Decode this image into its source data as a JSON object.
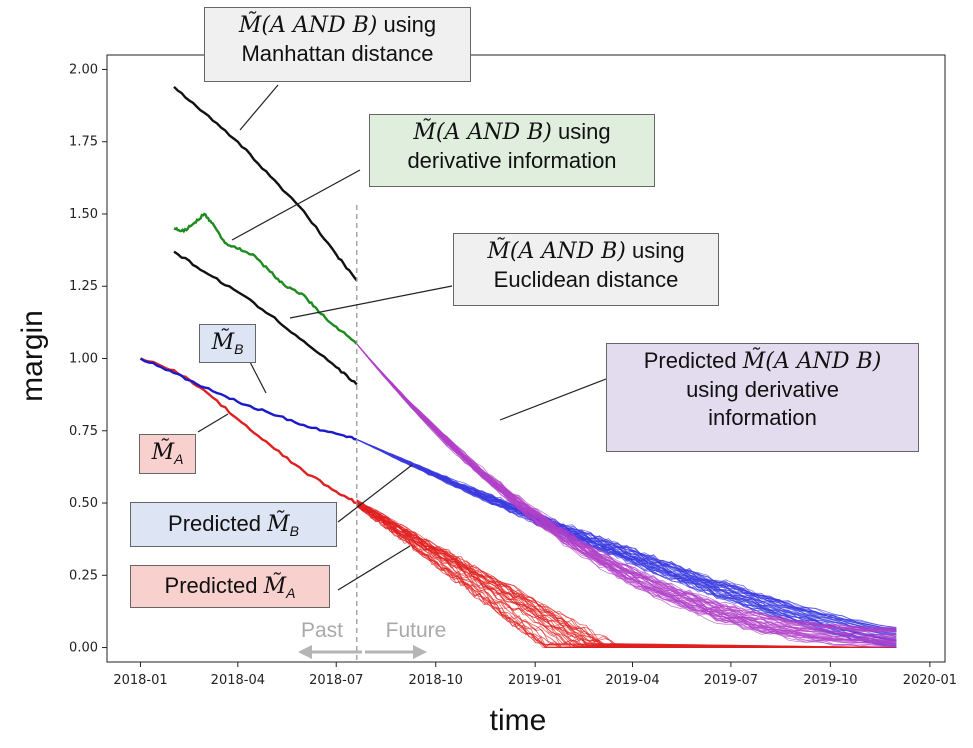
{
  "chart_data": {
    "type": "line",
    "xlabel": "time",
    "ylabel": "margin",
    "x_ticks": [
      "2018-01",
      "2018-04",
      "2018-07",
      "2018-10",
      "2019-01",
      "2019-04",
      "2019-07",
      "2019-10",
      "2020-01"
    ],
    "y_ticks": [
      "0.00",
      "0.25",
      "0.50",
      "0.75",
      "1.00",
      "1.25",
      "1.50",
      "1.75",
      "2.00"
    ],
    "xlim": [
      "2017-12-01",
      "2020-01-15"
    ],
    "ylim": [
      -0.05,
      2.05
    ],
    "present_date": "2018-07-20",
    "past_label": "Past",
    "future_label": "Future",
    "series": [
      {
        "name": "M_A",
        "color": "#e02020",
        "x": [
          "2018-01-01",
          "2018-02-01",
          "2018-03-01",
          "2018-04-01",
          "2018-05-01",
          "2018-06-01",
          "2018-07-01",
          "2018-07-20"
        ],
        "y": [
          1.0,
          0.96,
          0.89,
          0.79,
          0.7,
          0.61,
          0.54,
          0.5
        ]
      },
      {
        "name": "M_B",
        "color": "#1a1acc",
        "x": [
          "2018-01-01",
          "2018-02-01",
          "2018-03-01",
          "2018-04-01",
          "2018-05-01",
          "2018-06-01",
          "2018-07-01",
          "2018-07-20"
        ],
        "y": [
          1.0,
          0.95,
          0.9,
          0.85,
          0.81,
          0.77,
          0.74,
          0.72
        ]
      },
      {
        "name": "Manhattan",
        "color": "#111111",
        "x": [
          "2018-02-01",
          "2018-03-01",
          "2018-04-01",
          "2018-05-01",
          "2018-06-01",
          "2018-07-01",
          "2018-07-20"
        ],
        "y": [
          1.94,
          1.85,
          1.75,
          1.63,
          1.51,
          1.36,
          1.27
        ]
      },
      {
        "name": "Euclidean",
        "color": "#111111",
        "x": [
          "2018-02-01",
          "2018-03-01",
          "2018-04-01",
          "2018-05-01",
          "2018-06-01",
          "2018-07-01",
          "2018-07-20"
        ],
        "y": [
          1.37,
          1.3,
          1.23,
          1.15,
          1.06,
          0.97,
          0.91
        ]
      },
      {
        "name": "Derivative",
        "color": "#1f8a1f",
        "x": [
          "2018-02-01",
          "2018-02-10",
          "2018-02-20",
          "2018-03-01",
          "2018-03-10",
          "2018-03-20",
          "2018-04-01",
          "2018-04-15",
          "2018-05-01",
          "2018-05-15",
          "2018-06-01",
          "2018-06-15",
          "2018-07-01",
          "2018-07-20"
        ],
        "y": [
          1.45,
          1.44,
          1.47,
          1.5,
          1.46,
          1.4,
          1.38,
          1.36,
          1.3,
          1.25,
          1.22,
          1.16,
          1.11,
          1.05
        ]
      }
    ],
    "predictions": [
      {
        "name": "Predicted M_A",
        "color": "#e02020",
        "start": [
          "2018-07-20",
          0.5
        ],
        "end_range": [
          "2019-01-10",
          "2019-03-20"
        ],
        "final_y": 0.0,
        "floor_until": "2019-12-01",
        "count": 40
      },
      {
        "name": "Predicted M_B",
        "color": "#3a3ae0",
        "start": [
          "2018-07-20",
          0.72
        ],
        "end_x": "2019-12-01",
        "end_range_y": [
          0.0,
          0.07
        ],
        "mid": [
          "2019-04-01",
          0.37
        ],
        "count": 40
      },
      {
        "name": "Predicted M(A AND B)",
        "color": "#b040c8",
        "start": [
          "2018-07-20",
          1.05
        ],
        "end_x": "2019-12-01",
        "end_range_y": [
          0.0,
          0.07
        ],
        "mid": [
          "2019-04-01",
          0.37
        ],
        "count": 40
      }
    ]
  },
  "annotations": {
    "manhattan": {
      "line1_math": "M̃(A AND B)",
      "line1_text": " using",
      "line2": "Manhattan distance",
      "bg": "#f0f0f0"
    },
    "derivative": {
      "line1_math": "M̃(A AND B)",
      "line1_text": " using",
      "line2": "derivative information",
      "bg": "#dfeedd"
    },
    "euclidean": {
      "line1_math": "M̃(A AND B)",
      "line1_text": " using",
      "line2": "Euclidean distance",
      "bg": "#f0f0f0"
    },
    "mb": {
      "math": "M̃",
      "sub": "B",
      "bg": "#dde4f3"
    },
    "ma": {
      "math": "M̃",
      "sub": "A",
      "bg": "#f8d1cf"
    },
    "pred_b": {
      "text": "Predicted ",
      "math": "M̃",
      "sub": "B",
      "bg": "#dde4f3"
    },
    "pred_a": {
      "text": "Predicted ",
      "math": "M̃",
      "sub": "A",
      "bg": "#f8d1cf"
    },
    "pred_ab": {
      "line1_text": "Predicted ",
      "line1_math": "M̃(A AND B)",
      "line2": "using derivative",
      "line3": "information",
      "bg": "#e3dcef"
    }
  }
}
